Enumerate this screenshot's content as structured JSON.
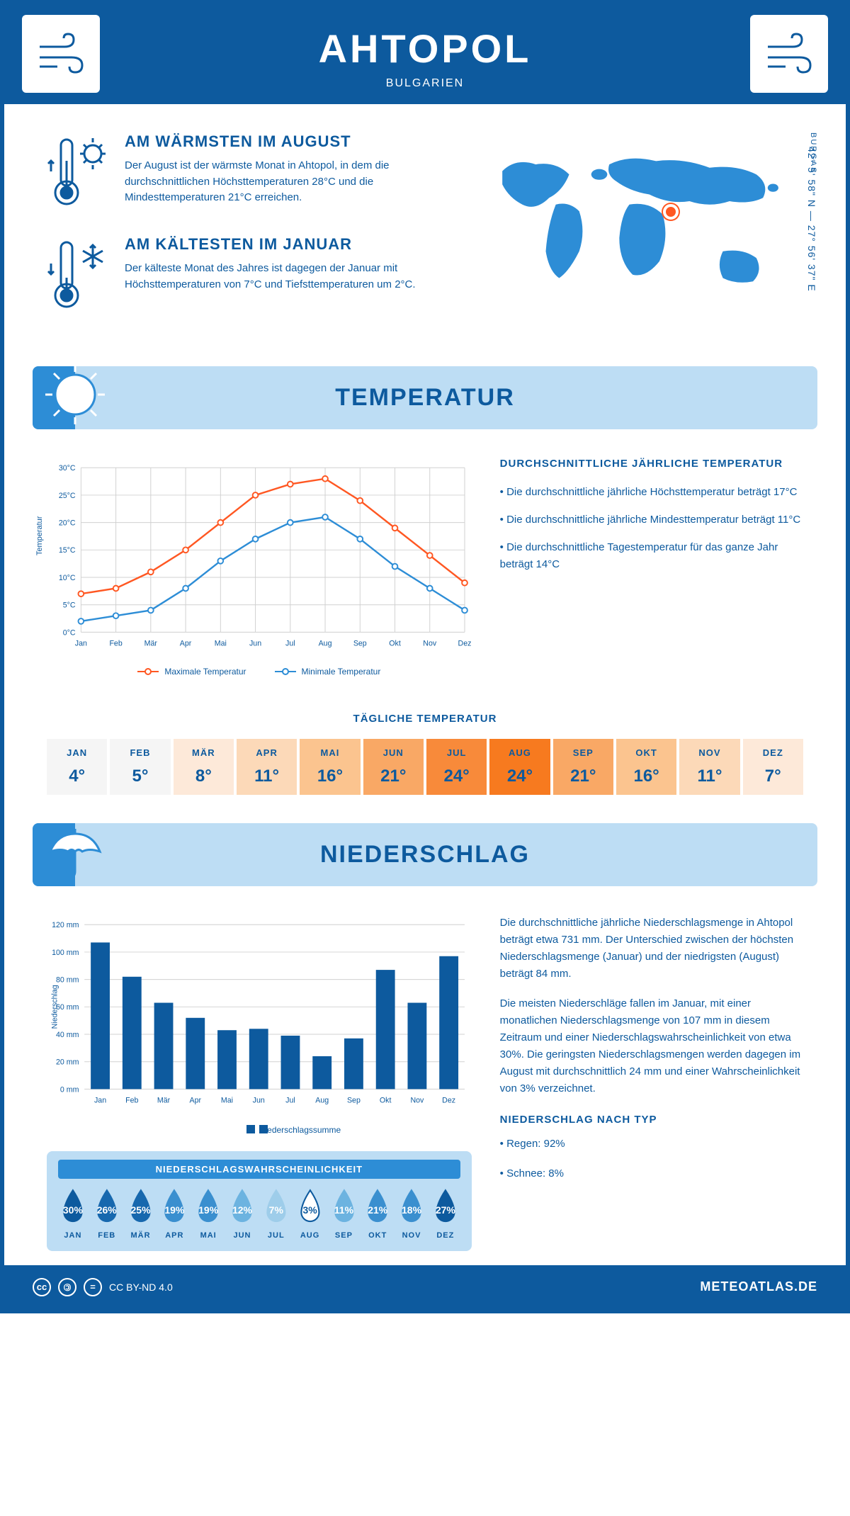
{
  "header": {
    "title": "AHTOPOL",
    "subtitle": "BULGARIEN"
  },
  "coords": "42° 5' 58\" N — 27° 56' 37\" E",
  "region": "BURGAS",
  "map_marker": {
    "left_pct": 58,
    "top_pct": 38
  },
  "warmest": {
    "title": "AM WÄRMSTEN IM AUGUST",
    "text": "Der August ist der wärmste Monat in Ahtopol, in dem die durchschnittlichen Höchsttemperaturen 28°C und die Mindesttemperaturen 21°C erreichen."
  },
  "coldest": {
    "title": "AM KÄLTESTEN IM JANUAR",
    "text": "Der kälteste Monat des Jahres ist dagegen der Januar mit Höchsttemperaturen von 7°C und Tiefsttemperaturen um 2°C."
  },
  "sections": {
    "temp": "TEMPERATUR",
    "precip": "NIEDERSCHLAG"
  },
  "temp_chart": {
    "type": "line",
    "months": [
      "Jan",
      "Feb",
      "Mär",
      "Apr",
      "Mai",
      "Jun",
      "Jul",
      "Aug",
      "Sep",
      "Okt",
      "Nov",
      "Dez"
    ],
    "max_series": [
      7,
      8,
      11,
      15,
      20,
      25,
      27,
      28,
      24,
      19,
      14,
      9
    ],
    "min_series": [
      2,
      3,
      4,
      8,
      13,
      17,
      20,
      21,
      17,
      12,
      8,
      4
    ],
    "ylim": [
      0,
      30
    ],
    "ytick_step": 5,
    "y_label": "Temperatur",
    "max_color": "#ff5722",
    "min_color": "#2d8dd6",
    "grid_color": "#d0d0d0",
    "legend_max": "Maximale Temperatur",
    "legend_min": "Minimale Temperatur"
  },
  "temp_info": {
    "title": "DURCHSCHNITTLICHE JÄHRLICHE TEMPERATUR",
    "bullets": [
      "• Die durchschnittliche jährliche Höchsttemperatur beträgt 17°C",
      "• Die durchschnittliche jährliche Mindesttemperatur beträgt 11°C",
      "• Die durchschnittliche Tagestemperatur für das ganze Jahr beträgt 14°C"
    ]
  },
  "daily_temp": {
    "title": "TÄGLICHE TEMPERATUR",
    "months": [
      "JAN",
      "FEB",
      "MÄR",
      "APR",
      "MAI",
      "JUN",
      "JUL",
      "AUG",
      "SEP",
      "OKT",
      "NOV",
      "DEZ"
    ],
    "values": [
      "4°",
      "5°",
      "8°",
      "11°",
      "16°",
      "21°",
      "24°",
      "24°",
      "21°",
      "16°",
      "11°",
      "7°"
    ],
    "colors": [
      "#f5f5f5",
      "#f5f5f5",
      "#fde9d9",
      "#fcd9b8",
      "#fbc48f",
      "#f9a865",
      "#f88a3a",
      "#f77a1f",
      "#f9a865",
      "#fbc48f",
      "#fcd9b8",
      "#fde9d9"
    ]
  },
  "precip_chart": {
    "type": "bar",
    "months": [
      "Jan",
      "Feb",
      "Mär",
      "Apr",
      "Mai",
      "Jun",
      "Jul",
      "Aug",
      "Sep",
      "Okt",
      "Nov",
      "Dez"
    ],
    "values": [
      107,
      82,
      63,
      52,
      43,
      44,
      39,
      24,
      37,
      87,
      63,
      97
    ],
    "ylim": [
      0,
      120
    ],
    "ytick_step": 20,
    "y_label": "Niederschlag",
    "bar_color": "#0d5a9e",
    "grid_color": "#d0d0d0",
    "legend": "Niederschlagssumme"
  },
  "precip_text": {
    "p1": "Die durchschnittliche jährliche Niederschlagsmenge in Ahtopol beträgt etwa 731 mm. Der Unterschied zwischen der höchsten Niederschlagsmenge (Januar) und der niedrigsten (August) beträgt 84 mm.",
    "p2": "Die meisten Niederschläge fallen im Januar, mit einer monatlichen Niederschlagsmenge von 107 mm in diesem Zeitraum und einer Niederschlagswahrscheinlichkeit von etwa 30%. Die geringsten Niederschlagsmengen werden dagegen im August mit durchschnittlich 24 mm und einer Wahrscheinlichkeit von 3% verzeichnet.",
    "type_title": "NIEDERSCHLAG NACH TYP",
    "type_rain": "• Regen: 92%",
    "type_snow": "• Schnee: 8%"
  },
  "prob": {
    "title": "NIEDERSCHLAGSWAHRSCHEINLICHKEIT",
    "months": [
      "JAN",
      "FEB",
      "MÄR",
      "APR",
      "MAI",
      "JUN",
      "JUL",
      "AUG",
      "SEP",
      "OKT",
      "NOV",
      "DEZ"
    ],
    "values": [
      "30%",
      "26%",
      "25%",
      "19%",
      "19%",
      "12%",
      "7%",
      "3%",
      "11%",
      "21%",
      "18%",
      "27%"
    ],
    "colors": [
      "#0d5a9e",
      "#1768ae",
      "#1768ae",
      "#3a8fcf",
      "#3a8fcf",
      "#6cb3e0",
      "#9ecdea",
      "#ffffff",
      "#6cb3e0",
      "#3a8fcf",
      "#3a8fcf",
      "#0d5a9e"
    ],
    "text_colors": [
      "#fff",
      "#fff",
      "#fff",
      "#fff",
      "#fff",
      "#fff",
      "#fff",
      "#0d5a9e",
      "#fff",
      "#fff",
      "#fff",
      "#fff"
    ]
  },
  "footer": {
    "license": "CC BY-ND 4.0",
    "site": "METEOATLAS.DE"
  },
  "colors": {
    "primary": "#0d5a9e",
    "light_blue": "#bdddf4",
    "mid_blue": "#2d8dd6",
    "orange": "#ff5722"
  }
}
